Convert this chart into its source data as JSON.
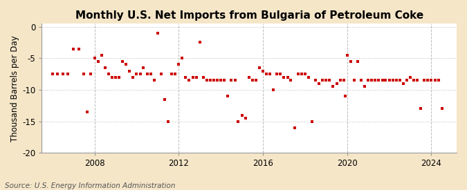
{
  "title": "Monthly U.S. Net Imports from Bulgaria of Petroleum Coke",
  "ylabel": "Thousand Barrels per Day",
  "source": "Source: U.S. Energy Information Administration",
  "ylim": [
    -20,
    0.5
  ],
  "yticks": [
    0,
    -5,
    -10,
    -15,
    -20
  ],
  "background_color": "#f5e6c8",
  "plot_bg_color": "#ffffff",
  "dot_color": "#cc0000",
  "grid_color": "#aaaaaa",
  "data_points": [
    [
      2006.0,
      -7.5
    ],
    [
      2006.25,
      -7.5
    ],
    [
      2006.5,
      -7.5
    ],
    [
      2006.75,
      -7.5
    ],
    [
      2007.0,
      -3.5
    ],
    [
      2007.25,
      -3.5
    ],
    [
      2007.5,
      -7.5
    ],
    [
      2007.67,
      -13.5
    ],
    [
      2007.83,
      -7.5
    ],
    [
      2008.0,
      -5.0
    ],
    [
      2008.17,
      -5.5
    ],
    [
      2008.33,
      -4.5
    ],
    [
      2008.5,
      -6.5
    ],
    [
      2008.67,
      -7.5
    ],
    [
      2008.83,
      -8.0
    ],
    [
      2009.0,
      -8.0
    ],
    [
      2009.17,
      -8.0
    ],
    [
      2009.33,
      -5.5
    ],
    [
      2009.5,
      -6.0
    ],
    [
      2009.67,
      -7.0
    ],
    [
      2009.83,
      -8.0
    ],
    [
      2010.0,
      -7.5
    ],
    [
      2010.17,
      -7.5
    ],
    [
      2010.33,
      -6.5
    ],
    [
      2010.5,
      -7.5
    ],
    [
      2010.67,
      -7.5
    ],
    [
      2010.83,
      -8.5
    ],
    [
      2011.0,
      -1.0
    ],
    [
      2011.17,
      -7.5
    ],
    [
      2011.33,
      -11.5
    ],
    [
      2011.5,
      -15.0
    ],
    [
      2011.67,
      -7.5
    ],
    [
      2011.83,
      -7.5
    ],
    [
      2012.0,
      -6.0
    ],
    [
      2012.17,
      -5.0
    ],
    [
      2012.33,
      -8.0
    ],
    [
      2012.5,
      -8.5
    ],
    [
      2012.67,
      -8.0
    ],
    [
      2012.83,
      -8.0
    ],
    [
      2013.0,
      -2.5
    ],
    [
      2013.17,
      -8.0
    ],
    [
      2013.33,
      -8.5
    ],
    [
      2013.5,
      -8.5
    ],
    [
      2013.67,
      -8.5
    ],
    [
      2013.83,
      -8.5
    ],
    [
      2014.0,
      -8.5
    ],
    [
      2014.17,
      -8.5
    ],
    [
      2014.33,
      -11.0
    ],
    [
      2014.5,
      -8.5
    ],
    [
      2014.67,
      -8.5
    ],
    [
      2014.83,
      -15.0
    ],
    [
      2015.0,
      -14.0
    ],
    [
      2015.17,
      -14.5
    ],
    [
      2015.33,
      -8.0
    ],
    [
      2015.5,
      -8.5
    ],
    [
      2015.67,
      -8.5
    ],
    [
      2015.83,
      -6.5
    ],
    [
      2016.0,
      -7.0
    ],
    [
      2016.17,
      -7.5
    ],
    [
      2016.33,
      -7.5
    ],
    [
      2016.5,
      -10.0
    ],
    [
      2016.67,
      -7.5
    ],
    [
      2016.83,
      -7.5
    ],
    [
      2017.0,
      -8.0
    ],
    [
      2017.17,
      -8.0
    ],
    [
      2017.33,
      -8.5
    ],
    [
      2017.5,
      -16.0
    ],
    [
      2017.67,
      -7.5
    ],
    [
      2017.83,
      -7.5
    ],
    [
      2018.0,
      -7.5
    ],
    [
      2018.17,
      -8.0
    ],
    [
      2018.33,
      -15.0
    ],
    [
      2018.5,
      -8.5
    ],
    [
      2018.67,
      -9.0
    ],
    [
      2018.83,
      -8.5
    ],
    [
      2019.0,
      -8.5
    ],
    [
      2019.17,
      -8.5
    ],
    [
      2019.33,
      -9.5
    ],
    [
      2019.5,
      -9.0
    ],
    [
      2019.67,
      -8.5
    ],
    [
      2019.83,
      -8.5
    ],
    [
      2019.92,
      -11.0
    ],
    [
      2020.0,
      -4.5
    ],
    [
      2020.17,
      -5.5
    ],
    [
      2020.33,
      -8.5
    ],
    [
      2020.5,
      -5.5
    ],
    [
      2020.67,
      -8.5
    ],
    [
      2020.83,
      -9.5
    ],
    [
      2021.0,
      -8.5
    ],
    [
      2021.17,
      -8.5
    ],
    [
      2021.33,
      -8.5
    ],
    [
      2021.5,
      -8.5
    ],
    [
      2021.67,
      -8.5
    ],
    [
      2021.83,
      -8.5
    ],
    [
      2022.0,
      -8.5
    ],
    [
      2022.17,
      -8.5
    ],
    [
      2022.33,
      -8.5
    ],
    [
      2022.5,
      -8.5
    ],
    [
      2022.67,
      -9.0
    ],
    [
      2022.83,
      -8.5
    ],
    [
      2023.0,
      -8.0
    ],
    [
      2023.17,
      -8.5
    ],
    [
      2023.33,
      -8.5
    ],
    [
      2023.5,
      -13.0
    ],
    [
      2023.67,
      -8.5
    ],
    [
      2023.83,
      -8.5
    ],
    [
      2024.0,
      -8.5
    ],
    [
      2024.17,
      -8.5
    ],
    [
      2024.33,
      -8.5
    ],
    [
      2024.5,
      -13.0
    ]
  ],
  "xticks": [
    2008,
    2012,
    2016,
    2020,
    2024
  ],
  "xlim": [
    2005.5,
    2025.2
  ],
  "title_fontsize": 11,
  "label_fontsize": 8.5,
  "source_fontsize": 7.5
}
